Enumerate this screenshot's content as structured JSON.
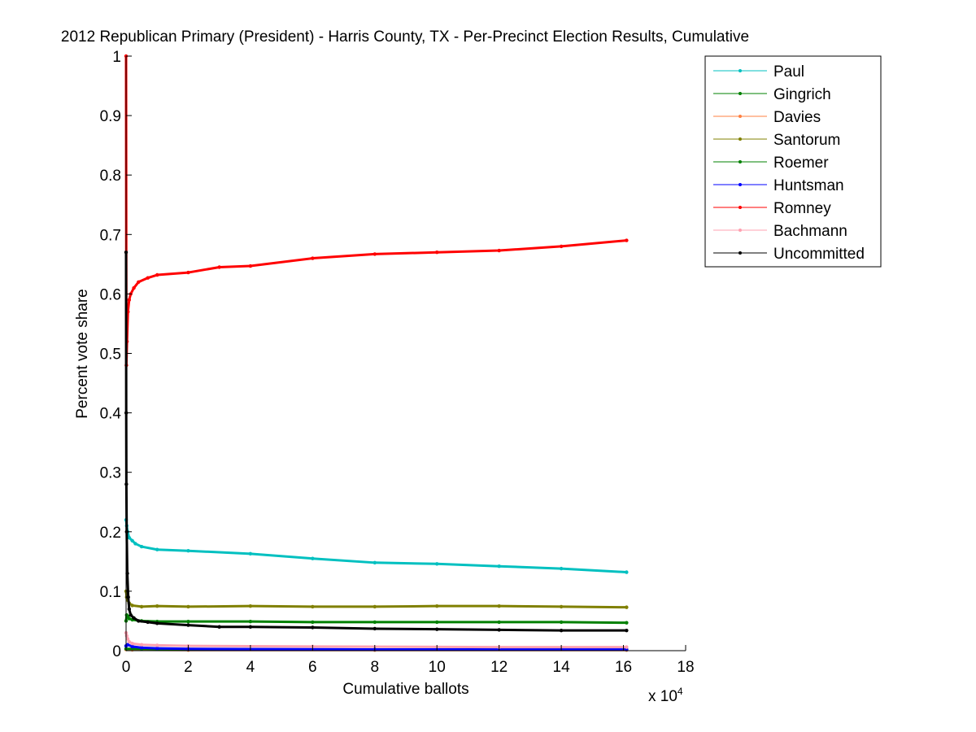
{
  "chart_data": {
    "type": "line",
    "title": "2012 Republican Primary (President) - Harris County, TX - Per-Precinct Election Results, Cumulative",
    "xlabel": "Cumulative ballots",
    "ylabel": "Percent vote share",
    "x_multiplier_label": "x 10",
    "x_multiplier_exponent": "4",
    "xlim": [
      0,
      180000
    ],
    "ylim": [
      0,
      1
    ],
    "x_tick_values": [
      0,
      20000,
      40000,
      60000,
      80000,
      100000,
      120000,
      140000,
      160000,
      180000
    ],
    "x_tick_labels": [
      "0",
      "2",
      "4",
      "6",
      "8",
      "10",
      "12",
      "14",
      "16",
      "18"
    ],
    "y_tick_values": [
      0,
      0.1,
      0.2,
      0.3,
      0.4,
      0.5,
      0.6,
      0.7,
      0.8,
      0.9,
      1
    ],
    "y_tick_labels": [
      "0",
      "0.1",
      "0.2",
      "0.3",
      "0.4",
      "0.5",
      "0.6",
      "0.7",
      "0.8",
      "0.9",
      "1"
    ],
    "legend_position": "top-right (outside plot)",
    "series": [
      {
        "name": "Paul",
        "color": "#00c0c0",
        "x": [
          0,
          200,
          500,
          1000,
          2000,
          3000,
          5000,
          10000,
          20000,
          40000,
          60000,
          80000,
          100000,
          120000,
          140000,
          161000
        ],
        "values": [
          0.22,
          0.21,
          0.2,
          0.19,
          0.185,
          0.18,
          0.175,
          0.17,
          0.168,
          0.163,
          0.155,
          0.148,
          0.146,
          0.142,
          0.138,
          0.132
        ]
      },
      {
        "name": "Gingrich",
        "color": "#008000",
        "x": [
          0,
          200,
          500,
          1000,
          2000,
          5000,
          10000,
          20000,
          40000,
          60000,
          80000,
          100000,
          120000,
          140000,
          161000
        ],
        "values": [
          0.05,
          0.06,
          0.058,
          0.054,
          0.052,
          0.05,
          0.049,
          0.049,
          0.049,
          0.048,
          0.048,
          0.048,
          0.048,
          0.048,
          0.047
        ]
      },
      {
        "name": "Davies",
        "color": "#ff8040",
        "x": [
          0,
          2000,
          20000,
          80000,
          161000
        ],
        "values": [
          0.002,
          0.0015,
          0.001,
          0.001,
          0.001
        ]
      },
      {
        "name": "Santorum",
        "color": "#808000",
        "x": [
          0,
          200,
          500,
          1000,
          2000,
          5000,
          10000,
          20000,
          40000,
          60000,
          80000,
          100000,
          120000,
          140000,
          161000
        ],
        "values": [
          0.1,
          0.09,
          0.085,
          0.08,
          0.076,
          0.074,
          0.075,
          0.074,
          0.075,
          0.074,
          0.074,
          0.075,
          0.075,
          0.074,
          0.073
        ]
      },
      {
        "name": "Roemer",
        "color": "#008000",
        "x": [
          0,
          5000,
          20000,
          80000,
          161000
        ],
        "values": [
          0.003,
          0.003,
          0.002,
          0.002,
          0.002
        ]
      },
      {
        "name": "Huntsman",
        "color": "#0000ff",
        "x": [
          0,
          500,
          2000,
          5000,
          10000,
          20000,
          80000,
          161000
        ],
        "values": [
          0.008,
          0.01,
          0.007,
          0.005,
          0.004,
          0.003,
          0.002,
          0.002
        ]
      },
      {
        "name": "Romney",
        "color": "#ff0000",
        "x": [
          0,
          100,
          300,
          600,
          1000,
          1500,
          2500,
          4000,
          7000,
          10000,
          20000,
          30000,
          40000,
          60000,
          80000,
          100000,
          120000,
          140000,
          161000
        ],
        "values": [
          1.0,
          0.48,
          0.52,
          0.57,
          0.59,
          0.6,
          0.61,
          0.62,
          0.627,
          0.632,
          0.636,
          0.645,
          0.647,
          0.66,
          0.667,
          0.67,
          0.673,
          0.68,
          0.69
        ]
      },
      {
        "name": "Bachmann",
        "color": "#ffa0b0",
        "x": [
          0,
          200,
          500,
          1000,
          2000,
          5000,
          10000,
          20000,
          60000,
          120000,
          161000
        ],
        "values": [
          0.03,
          0.025,
          0.02,
          0.015,
          0.012,
          0.01,
          0.009,
          0.008,
          0.007,
          0.006,
          0.006
        ]
      },
      {
        "name": "Uncommitted",
        "color": "#000000",
        "x": [
          0,
          50,
          100,
          200,
          400,
          700,
          1000,
          1500,
          2500,
          4000,
          7000,
          10000,
          20000,
          30000,
          40000,
          60000,
          80000,
          100000,
          120000,
          140000,
          161000
        ],
        "values": [
          0.67,
          0.4,
          0.28,
          0.2,
          0.13,
          0.09,
          0.07,
          0.06,
          0.055,
          0.05,
          0.048,
          0.046,
          0.043,
          0.04,
          0.04,
          0.039,
          0.037,
          0.036,
          0.035,
          0.034,
          0.034
        ]
      }
    ]
  }
}
